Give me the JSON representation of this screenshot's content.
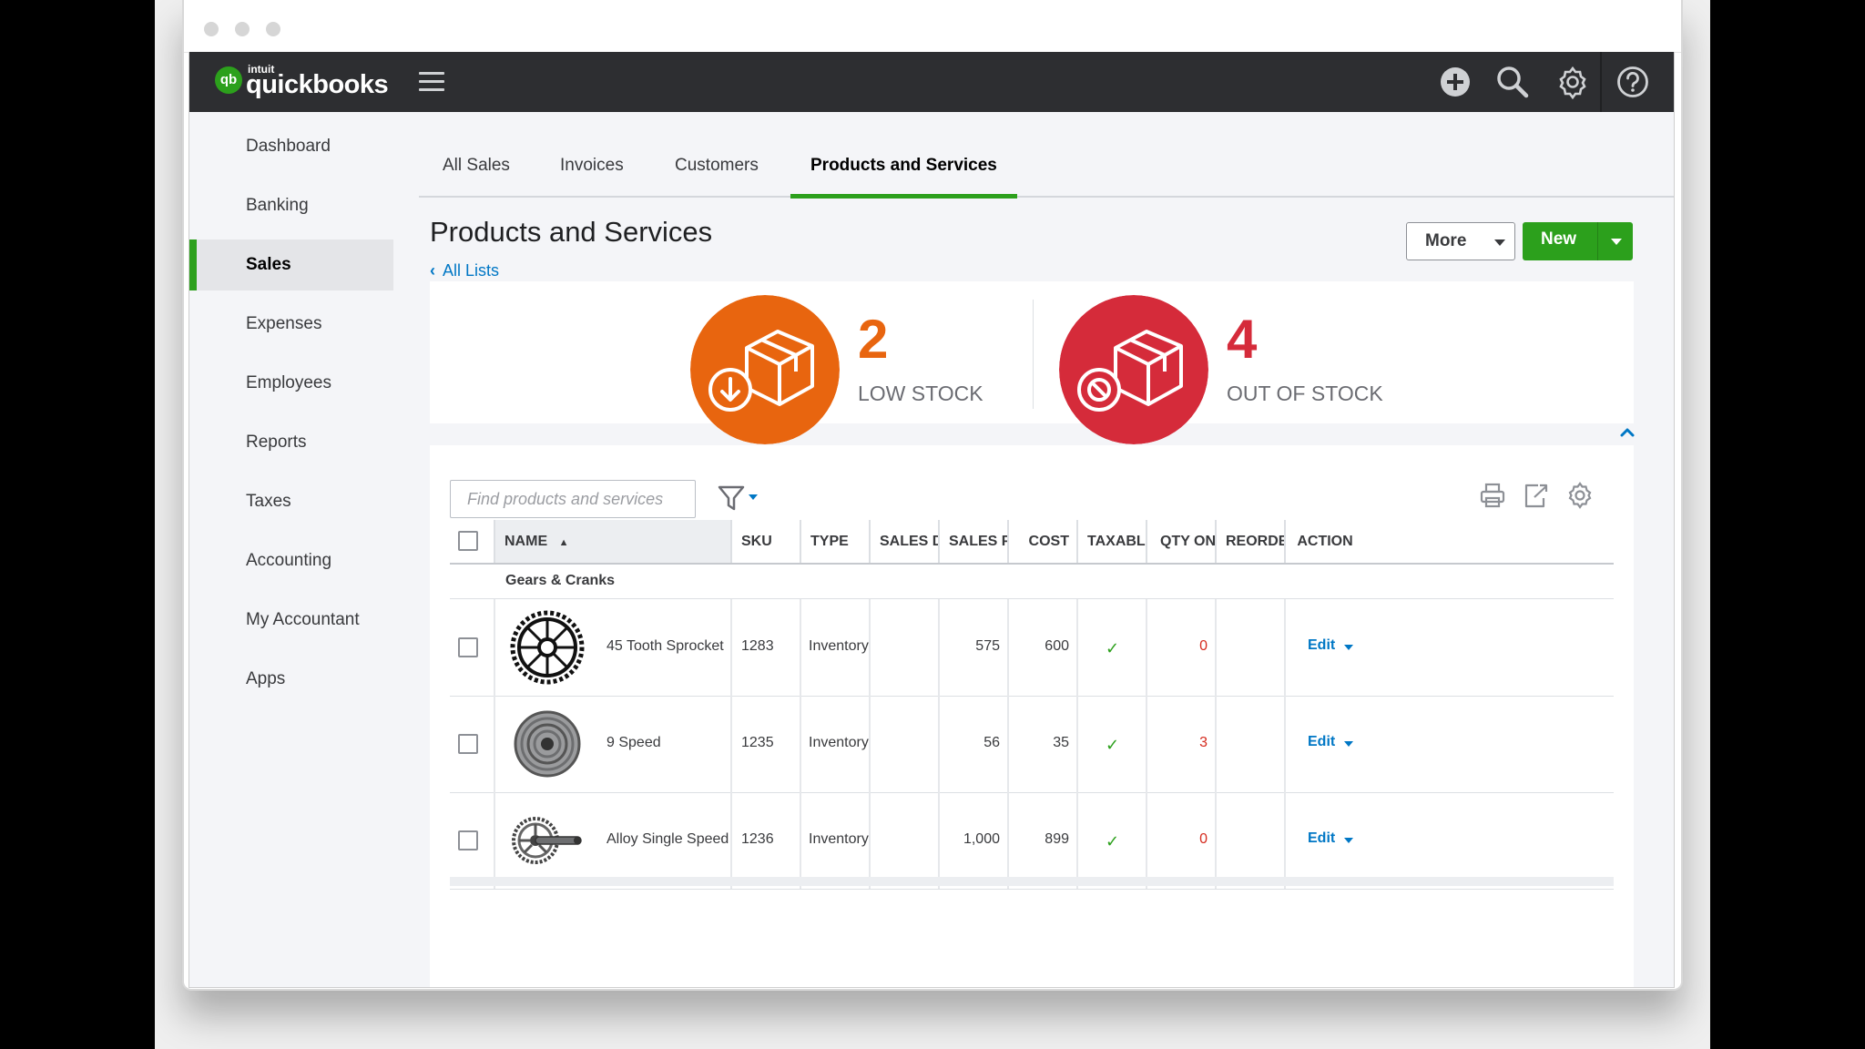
{
  "app": {
    "logo_brand": "intuit",
    "logo_name": "quickbooks"
  },
  "sidebar": {
    "items": [
      {
        "label": "Dashboard"
      },
      {
        "label": "Banking"
      },
      {
        "label": "Sales",
        "active": true
      },
      {
        "label": "Expenses"
      },
      {
        "label": "Employees"
      },
      {
        "label": "Reports"
      },
      {
        "label": "Taxes"
      },
      {
        "label": "Accounting"
      },
      {
        "label": "My Accountant"
      },
      {
        "label": "Apps"
      }
    ]
  },
  "tabs": [
    {
      "label": "All Sales"
    },
    {
      "label": "Invoices"
    },
    {
      "label": "Customers"
    },
    {
      "label": "Products and Services",
      "active": true
    }
  ],
  "page": {
    "title": "Products and Services",
    "back_link": "All Lists",
    "more_label": "More",
    "new_label": "New"
  },
  "stock": {
    "low": {
      "count": "2",
      "label": "LOW STOCK",
      "color": "#e8650f"
    },
    "out": {
      "count": "4",
      "label": "OUT OF STOCK",
      "color": "#d52b3a"
    }
  },
  "search": {
    "placeholder": "Find products and services",
    "value": ""
  },
  "table": {
    "columns": [
      "NAME",
      "SKU",
      "TYPE",
      "SALES DES",
      "SALES PRIC",
      "COST",
      "TAXABLE",
      "QTY ON H",
      "REORDER",
      "ACTION"
    ],
    "group": "Gears & Cranks",
    "rows": [
      {
        "name": "45 Tooth Sprocket",
        "sku": "1283",
        "type": "Inventory",
        "sales_desc": "",
        "sales_price": "575",
        "cost": "600",
        "taxable": true,
        "qty": "0",
        "reorder": "",
        "action": "Edit",
        "image": "sprocket"
      },
      {
        "name": "9 Speed",
        "sku": "1235",
        "type": "Inventory",
        "sales_desc": "",
        "sales_price": "56",
        "cost": "35",
        "taxable": true,
        "qty": "3",
        "reorder": "",
        "action": "Edit",
        "image": "cassette"
      },
      {
        "name": "Alloy Single Speed",
        "sku": "1236",
        "type": "Inventory",
        "sales_desc": "",
        "sales_price": "1,000",
        "cost": "899",
        "taxable": true,
        "qty": "0",
        "reorder": "",
        "action": "Edit",
        "image": "crankset"
      }
    ]
  },
  "colors": {
    "brand_green": "#2ca01c",
    "link_blue": "#0077c5",
    "topbar": "#2d2e31",
    "alert_red": "#d52b1e"
  }
}
